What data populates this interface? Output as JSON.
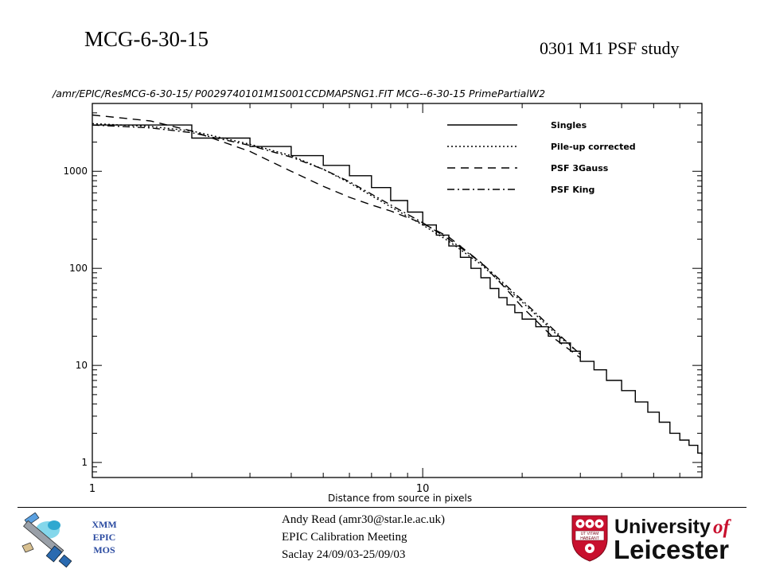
{
  "header": {
    "title_left": "MCG-6-30-15",
    "title_right": "0301 M1 PSF study"
  },
  "chart_data": {
    "type": "line",
    "title": "/amr/EPIC/ResMCG-6-30-15/ P0029740101M1S001CCDMAPSNG1.FIT MCG--6-30-15 PrimePartialW2",
    "xlabel": "Distance from source in pixels",
    "ylabel": "",
    "xscale": "log",
    "yscale": "log",
    "xlim": [
      1,
      70
    ],
    "ylim": [
      0.7,
      5000
    ],
    "xticks": [
      {
        "value": 1,
        "label": "1"
      },
      {
        "value": 10,
        "label": "10"
      }
    ],
    "yticks": [
      {
        "value": 1,
        "label": "1"
      },
      {
        "value": 10,
        "label": "10"
      },
      {
        "value": 100,
        "label": "100"
      },
      {
        "value": 1000,
        "label": "1000"
      }
    ],
    "legend_position": "top-right",
    "series": [
      {
        "name": "Singles",
        "style": "solid",
        "step": true,
        "x": [
          1,
          2,
          3,
          4,
          5,
          6,
          7,
          8,
          9,
          10,
          11,
          12,
          13,
          14,
          15,
          16,
          17,
          18,
          19,
          20,
          22,
          24,
          26,
          28,
          30,
          33,
          36,
          40,
          44,
          48,
          52,
          56,
          60,
          64,
          68,
          70
        ],
        "y": [
          3000,
          2200,
          1800,
          1450,
          1150,
          900,
          680,
          500,
          380,
          280,
          220,
          170,
          130,
          100,
          80,
          62,
          50,
          42,
          35,
          30,
          25,
          20,
          17,
          14,
          11,
          9,
          7,
          5.5,
          4.2,
          3.3,
          2.6,
          2.0,
          1.7,
          1.5,
          1.25,
          1.2
        ]
      },
      {
        "name": "Pile-up corrected",
        "style": "dotted",
        "step": false,
        "x": [
          1,
          1.5,
          2,
          3,
          4,
          5,
          6,
          8,
          10,
          12,
          15,
          20,
          25,
          30
        ],
        "y": [
          3100,
          2900,
          2600,
          1900,
          1450,
          1050,
          760,
          430,
          280,
          190,
          110,
          45,
          22,
          13
        ]
      },
      {
        "name": "PSF 3Gauss",
        "style": "dashed",
        "step": false,
        "x": [
          1,
          1.5,
          2,
          3,
          4,
          5,
          6,
          7,
          8,
          10,
          12,
          15,
          18,
          20,
          25,
          30
        ],
        "y": [
          3800,
          3300,
          2600,
          1600,
          1000,
          700,
          540,
          450,
          390,
          290,
          210,
          115,
          60,
          40,
          19,
          12
        ]
      },
      {
        "name": "PSF King",
        "style": "dash-dot",
        "step": false,
        "x": [
          1,
          1.5,
          2,
          3,
          4,
          5,
          6,
          8,
          10,
          12,
          15,
          20,
          25,
          30
        ],
        "y": [
          3000,
          2800,
          2500,
          1850,
          1400,
          1050,
          780,
          450,
          295,
          200,
          115,
          47,
          23,
          13
        ]
      }
    ]
  },
  "footer": {
    "mos_lines": [
      "XMM",
      "EPIC",
      "MOS"
    ],
    "author": "Andy Read (amr30@star.le.ac.uk)",
    "meeting": "EPIC Calibration Meeting",
    "place_date": "Saclay 24/09/03-25/09/03",
    "university_line1": "University",
    "university_of": "of",
    "university_line2": "Leicester",
    "shield_motto_1": "UT VITAM",
    "shield_motto_2": "HABEANT"
  }
}
